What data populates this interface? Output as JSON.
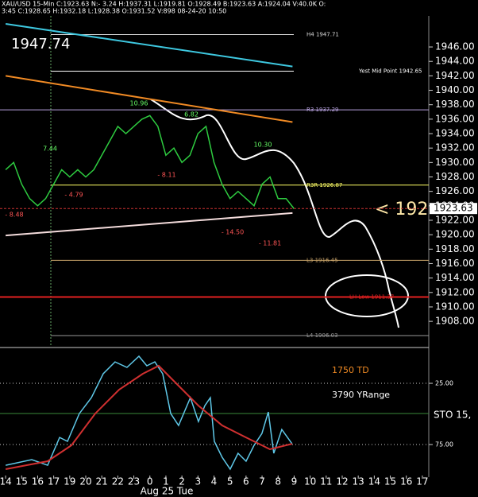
{
  "header": {
    "line1": "XAU/USD  15-Min  C:1923.63  N:- 3.24  H:1937.31  L:1919.81  O:1928.49  B:1923.63  A:1924.04  V:40.0K  O:",
    "line2": "3:45  C:1928.65  H:1932.18  L:1928.38  O:1931.52  V:898  08-24-20  10:50"
  },
  "chart_data": [
    {
      "type": "line",
      "title": "1947.74",
      "current_price": 1923.63,
      "arrow_text": "< 192",
      "xlim": [
        -0.35,
        26.4
      ],
      "ylim": [
        1904.6,
        1950.3
      ],
      "yticks": [
        {
          "value": 1908,
          "label": "1908.00"
        },
        {
          "value": 1910,
          "label": "1910.00"
        },
        {
          "value": 1912,
          "label": "1912.00"
        },
        {
          "value": 1914,
          "label": "1914.00"
        },
        {
          "value": 1916,
          "label": "1916.00"
        },
        {
          "value": 1918,
          "label": "1918.00"
        },
        {
          "value": 1920,
          "label": "1920.00"
        },
        {
          "value": 1922,
          "label": "1922.00"
        },
        {
          "value": 1924,
          "label": "1924.00"
        },
        {
          "value": 1926,
          "label": "1926.00"
        },
        {
          "value": 1928,
          "label": "1928.00"
        },
        {
          "value": 1930,
          "label": "1930.00"
        },
        {
          "value": 1932,
          "label": "1932.00"
        },
        {
          "value": 1934,
          "label": "1934.00"
        },
        {
          "value": 1936,
          "label": "1936.00"
        },
        {
          "value": 1938,
          "label": "1938.00"
        },
        {
          "value": 1940,
          "label": "1940.00"
        },
        {
          "value": 1942,
          "label": "1942.00"
        },
        {
          "value": 1944,
          "label": "1944.00"
        },
        {
          "value": 1946,
          "label": "1946.00"
        }
      ],
      "series": [
        {
          "color": "#2ecc40",
          "x": [
            0,
            0.5,
            1,
            1.5,
            2,
            2.5,
            3,
            3.5,
            4,
            4.5,
            5,
            5.5,
            6,
            6.5,
            7,
            7.5,
            8,
            8.5,
            9,
            9.5,
            10,
            10.5,
            11,
            11.5,
            12,
            12.5,
            13,
            13.5,
            14,
            14.5,
            15,
            15.5,
            16,
            16.5,
            17,
            17.5,
            18
          ],
          "values": [
            1929,
            1930,
            1927,
            1925,
            1924,
            1925,
            1927,
            1929,
            1928,
            1929,
            1928,
            1929,
            1931,
            1933,
            1935,
            1934,
            1935,
            1936,
            1936.5,
            1935,
            1931,
            1932,
            1930,
            1931,
            1934,
            1935,
            1930,
            1927,
            1925,
            1926,
            1925,
            1924,
            1927,
            1928,
            1925,
            1925,
            1923.6
          ]
        },
        {
          "color": "#3ec8e0",
          "x": [
            0,
            17.9
          ],
          "values": [
            1949.2,
            1943.3
          ]
        },
        {
          "color": "#f08a24",
          "x": [
            0,
            17.9
          ],
          "values": [
            1942,
            1935.6
          ]
        },
        {
          "color": "#f4dcdc",
          "x": [
            0,
            17.9
          ],
          "values": [
            1919.9,
            1923
          ]
        }
      ],
      "levels": [
        {
          "label": "H4 1947.71",
          "value": 1947.71,
          "color": "#dddddd"
        },
        {
          "label": "Yest Mid Point 1942.65",
          "value": 1942.65,
          "color": "#ffffff"
        },
        {
          "label": "R3 1937.29",
          "value": 1937.29,
          "color": "#b9a3e0"
        },
        {
          "label": "R3R 1926.87",
          "value": 1926.87,
          "color": "#ffff66"
        },
        {
          "label": "L3 1916.45",
          "value": 1916.45,
          "color": "#c9a46a"
        },
        {
          "label": "LH Low 1911.37",
          "value": 1911.37,
          "color": "#e02020"
        },
        {
          "label": "L4 1906.03",
          "value": 1906.03,
          "color": "#999999"
        }
      ],
      "annotations": [
        "10.96",
        "6.82",
        "10.30",
        "7.44",
        "- 4.79",
        "- 8.11",
        "- 8.48",
        "- 14.50",
        "- 11.81"
      ]
    },
    {
      "type": "line",
      "notes": [
        "1750 TD",
        "3790 YRange"
      ],
      "axis_label": "STO 15,",
      "date_label": "Aug 25 Tue",
      "xlim": [
        -0.35,
        26.4
      ],
      "ylim": [
        100.3,
        -2.3
      ],
      "yticks": [
        {
          "value": 25,
          "label": "25.00"
        },
        {
          "value": 75,
          "label": "75.00"
        }
      ],
      "xticks": [
        {
          "value": 0,
          "label": "14"
        },
        {
          "value": 1,
          "label": "15"
        },
        {
          "value": 2,
          "label": "16"
        },
        {
          "value": 3,
          "label": "17"
        },
        {
          "value": 4,
          "label": "19"
        },
        {
          "value": 5,
          "label": "20"
        },
        {
          "value": 6,
          "label": "21"
        },
        {
          "value": 7,
          "label": "22"
        },
        {
          "value": 8,
          "label": "23"
        },
        {
          "value": 9,
          "label": "0"
        },
        {
          "value": 10,
          "label": "1"
        },
        {
          "value": 11,
          "label": "2"
        },
        {
          "value": 12,
          "label": "3"
        },
        {
          "value": 13,
          "label": "4"
        },
        {
          "value": 14,
          "label": "5"
        },
        {
          "value": 15,
          "label": "6"
        },
        {
          "value": 16,
          "label": "7"
        },
        {
          "value": 17,
          "label": "8"
        },
        {
          "value": 18,
          "label": "9"
        },
        {
          "value": 19,
          "label": "10"
        },
        {
          "value": 20,
          "label": "11"
        },
        {
          "value": 21,
          "label": "12"
        },
        {
          "value": 22,
          "label": "13"
        },
        {
          "value": 23,
          "label": "14"
        },
        {
          "value": 24,
          "label": "15"
        },
        {
          "value": 25,
          "label": "16"
        },
        {
          "value": 26,
          "label": "17"
        }
      ],
      "series": [
        {
          "color": "#5fc8e8",
          "x": [
            0,
            1.63,
            2.62,
            3.37,
            3.86,
            4.6,
            5.35,
            6.09,
            6.83,
            7.57,
            8.32,
            8.81,
            9.31,
            9.8,
            10.3,
            10.79,
            11.53,
            12.03,
            12.43,
            12.77,
            13.02,
            13.51,
            14.01,
            14.5,
            15,
            15.5,
            15.99,
            16.39,
            16.73,
            17.23,
            17.87
          ],
          "values": [
            91.9,
            87.3,
            91.9,
            69.2,
            72.4,
            49.7,
            36.7,
            17.2,
            7.5,
            12,
            2.9,
            10.7,
            7.5,
            17.2,
            49.7,
            59.4,
            36.7,
            56.2,
            43.2,
            36.7,
            72.4,
            85.4,
            95.1,
            82.1,
            88.6,
            75.6,
            65.9,
            48.4,
            82.1,
            62.7,
            74.4
          ]
        },
        {
          "color": "#d03030",
          "x": [
            0,
            2.62,
            4.11,
            5.59,
            7.08,
            8.56,
            9.55,
            10.54,
            12.03,
            13.51,
            15,
            16.49,
            17.87
          ],
          "values": [
            95.1,
            88.6,
            75.6,
            49.7,
            30.2,
            17.2,
            10.7,
            23.7,
            43.2,
            59.4,
            69.2,
            78.9,
            74.4
          ]
        }
      ]
    }
  ]
}
